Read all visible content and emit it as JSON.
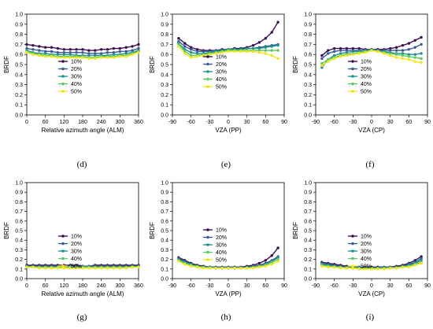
{
  "colors": {
    "10%": "#3b0f52",
    "20%": "#3b5a9a",
    "30%": "#23918c",
    "40%": "#5ec962",
    "50%": "#f2e61a"
  },
  "chart_data": [
    {
      "id": "d",
      "type": "line",
      "label": "(d)",
      "xlabel": "Relative azimuth angle (ALM)",
      "ylabel": "BRDF",
      "xlim": [
        0,
        360
      ],
      "ylim": [
        0,
        1.0
      ],
      "xticks": [
        0,
        60,
        120,
        180,
        240,
        300,
        360
      ],
      "x": [
        0,
        20,
        40,
        60,
        80,
        100,
        120,
        140,
        160,
        180,
        200,
        220,
        240,
        260,
        280,
        300,
        320,
        340,
        360
      ],
      "series": [
        {
          "name": "10%",
          "values": [
            0.7,
            0.69,
            0.68,
            0.67,
            0.67,
            0.66,
            0.65,
            0.65,
            0.65,
            0.65,
            0.64,
            0.64,
            0.65,
            0.65,
            0.66,
            0.66,
            0.67,
            0.68,
            0.7
          ]
        },
        {
          "name": "20%",
          "values": [
            0.66,
            0.65,
            0.64,
            0.63,
            0.63,
            0.62,
            0.62,
            0.62,
            0.62,
            0.62,
            0.61,
            0.61,
            0.61,
            0.62,
            0.62,
            0.63,
            0.63,
            0.64,
            0.66
          ]
        },
        {
          "name": "30%",
          "values": [
            0.64,
            0.62,
            0.61,
            0.61,
            0.6,
            0.6,
            0.6,
            0.6,
            0.59,
            0.59,
            0.59,
            0.59,
            0.59,
            0.59,
            0.6,
            0.6,
            0.61,
            0.62,
            0.64
          ]
        },
        {
          "name": "40%",
          "values": [
            0.63,
            0.61,
            0.6,
            0.59,
            0.59,
            0.58,
            0.58,
            0.58,
            0.58,
            0.58,
            0.57,
            0.57,
            0.58,
            0.58,
            0.58,
            0.59,
            0.59,
            0.61,
            0.63
          ]
        },
        {
          "name": "50%",
          "values": [
            0.62,
            0.6,
            0.59,
            0.58,
            0.58,
            0.57,
            0.57,
            0.57,
            0.57,
            0.57,
            0.56,
            0.56,
            0.57,
            0.57,
            0.57,
            0.58,
            0.58,
            0.6,
            0.62
          ]
        }
      ]
    },
    {
      "id": "e",
      "type": "line",
      "label": "(e)",
      "xlabel": "VZA (PP)",
      "ylabel": "BRDF",
      "xlim": [
        -90,
        90
      ],
      "ylim": [
        0,
        1.0
      ],
      "xticks": [
        -90,
        -60,
        -30,
        0,
        30,
        60,
        90
      ],
      "x": [
        -80,
        -70,
        -60,
        -50,
        -40,
        -30,
        -20,
        -10,
        0,
        10,
        20,
        30,
        40,
        50,
        60,
        70,
        80
      ],
      "series": [
        {
          "name": "10%",
          "values": [
            0.76,
            0.71,
            0.67,
            0.65,
            0.64,
            0.64,
            0.64,
            0.65,
            0.65,
            0.66,
            0.66,
            0.67,
            0.69,
            0.72,
            0.76,
            0.82,
            0.92
          ]
        },
        {
          "name": "20%",
          "values": [
            0.73,
            0.68,
            0.65,
            0.63,
            0.63,
            0.63,
            0.64,
            0.64,
            0.65,
            0.65,
            0.65,
            0.66,
            0.66,
            0.67,
            0.68,
            0.69,
            0.7
          ]
        },
        {
          "name": "30%",
          "values": [
            0.71,
            0.65,
            0.62,
            0.61,
            0.61,
            0.62,
            0.63,
            0.64,
            0.65,
            0.65,
            0.65,
            0.66,
            0.66,
            0.66,
            0.67,
            0.68,
            0.69
          ]
        },
        {
          "name": "40%",
          "values": [
            0.7,
            0.63,
            0.59,
            0.59,
            0.6,
            0.61,
            0.62,
            0.63,
            0.64,
            0.64,
            0.64,
            0.64,
            0.64,
            0.64,
            0.64,
            0.64,
            0.64
          ]
        },
        {
          "name": "50%",
          "values": [
            0.68,
            0.61,
            0.57,
            0.58,
            0.59,
            0.6,
            0.61,
            0.62,
            0.63,
            0.63,
            0.63,
            0.63,
            0.63,
            0.62,
            0.61,
            0.59,
            0.56
          ]
        }
      ]
    },
    {
      "id": "f",
      "type": "line",
      "label": "(f)",
      "xlabel": "VZA (CP)",
      "ylabel": "BRDF",
      "xlim": [
        -90,
        90
      ],
      "ylim": [
        0,
        1.0
      ],
      "xticks": [
        -90,
        -60,
        -30,
        0,
        30,
        60,
        90
      ],
      "x": [
        -80,
        -70,
        -60,
        -50,
        -40,
        -30,
        -20,
        -10,
        0,
        10,
        20,
        30,
        40,
        50,
        60,
        70,
        80
      ],
      "series": [
        {
          "name": "10%",
          "values": [
            0.59,
            0.64,
            0.66,
            0.66,
            0.66,
            0.66,
            0.66,
            0.65,
            0.65,
            0.65,
            0.65,
            0.66,
            0.67,
            0.69,
            0.71,
            0.74,
            0.77
          ]
        },
        {
          "name": "20%",
          "values": [
            0.56,
            0.61,
            0.63,
            0.64,
            0.64,
            0.64,
            0.64,
            0.64,
            0.65,
            0.64,
            0.64,
            0.64,
            0.64,
            0.64,
            0.65,
            0.67,
            0.7
          ]
        },
        {
          "name": "30%",
          "values": [
            0.47,
            0.55,
            0.59,
            0.61,
            0.62,
            0.63,
            0.63,
            0.64,
            0.65,
            0.64,
            0.63,
            0.62,
            0.61,
            0.61,
            0.6,
            0.6,
            0.61
          ]
        },
        {
          "name": "40%",
          "values": [
            0.51,
            0.55,
            0.57,
            0.59,
            0.6,
            0.61,
            0.62,
            0.63,
            0.64,
            0.63,
            0.62,
            0.61,
            0.6,
            0.59,
            0.58,
            0.57,
            0.56
          ]
        },
        {
          "name": "50%",
          "values": [
            0.49,
            0.53,
            0.56,
            0.58,
            0.59,
            0.6,
            0.61,
            0.62,
            0.64,
            0.63,
            0.61,
            0.59,
            0.57,
            0.56,
            0.55,
            0.53,
            0.52
          ]
        }
      ]
    },
    {
      "id": "g",
      "type": "line",
      "label": "(g)",
      "xlabel": "Relative azimuth angle (ALM)",
      "ylabel": "BRDF",
      "xlim": [
        0,
        360
      ],
      "ylim": [
        0,
        1.0
      ],
      "xticks": [
        0,
        60,
        120,
        180,
        240,
        300,
        360
      ],
      "x": [
        0,
        20,
        40,
        60,
        80,
        100,
        120,
        140,
        160,
        180,
        200,
        220,
        240,
        260,
        280,
        300,
        320,
        340,
        360
      ],
      "series": [
        {
          "name": "10%",
          "values": [
            0.14,
            0.14,
            0.14,
            0.14,
            0.14,
            0.14,
            0.14,
            0.14,
            0.14,
            0.13,
            0.13,
            0.14,
            0.14,
            0.14,
            0.14,
            0.14,
            0.14,
            0.14,
            0.14
          ]
        },
        {
          "name": "20%",
          "values": [
            0.13,
            0.13,
            0.13,
            0.13,
            0.13,
            0.13,
            0.13,
            0.13,
            0.13,
            0.13,
            0.13,
            0.13,
            0.13,
            0.13,
            0.13,
            0.13,
            0.13,
            0.13,
            0.13
          ]
        },
        {
          "name": "30%",
          "values": [
            0.13,
            0.13,
            0.12,
            0.12,
            0.12,
            0.12,
            0.12,
            0.12,
            0.12,
            0.12,
            0.12,
            0.12,
            0.12,
            0.12,
            0.12,
            0.12,
            0.12,
            0.13,
            0.13
          ]
        },
        {
          "name": "40%",
          "values": [
            0.12,
            0.12,
            0.12,
            0.12,
            0.12,
            0.12,
            0.12,
            0.12,
            0.12,
            0.12,
            0.12,
            0.12,
            0.12,
            0.12,
            0.12,
            0.12,
            0.12,
            0.12,
            0.12
          ]
        },
        {
          "name": "50%",
          "values": [
            0.12,
            0.12,
            0.11,
            0.11,
            0.11,
            0.11,
            0.11,
            0.11,
            0.11,
            0.11,
            0.11,
            0.11,
            0.11,
            0.11,
            0.11,
            0.11,
            0.11,
            0.12,
            0.12
          ]
        }
      ]
    },
    {
      "id": "h",
      "type": "line",
      "label": "(h)",
      "xlabel": "VZA (PP)",
      "ylabel": "BRDF",
      "xlim": [
        -90,
        90
      ],
      "ylim": [
        0,
        1.0
      ],
      "xticks": [
        -90,
        -60,
        -30,
        0,
        30,
        60,
        90
      ],
      "x": [
        -80,
        -70,
        -60,
        -50,
        -40,
        -30,
        -20,
        -10,
        0,
        10,
        20,
        30,
        40,
        50,
        60,
        70,
        80
      ],
      "series": [
        {
          "name": "10%",
          "values": [
            0.22,
            0.19,
            0.16,
            0.14,
            0.13,
            0.12,
            0.12,
            0.12,
            0.12,
            0.12,
            0.12,
            0.13,
            0.14,
            0.16,
            0.19,
            0.24,
            0.32
          ]
        },
        {
          "name": "20%",
          "values": [
            0.21,
            0.18,
            0.15,
            0.13,
            0.12,
            0.12,
            0.12,
            0.12,
            0.12,
            0.12,
            0.12,
            0.12,
            0.13,
            0.14,
            0.16,
            0.19,
            0.23
          ]
        },
        {
          "name": "30%",
          "values": [
            0.2,
            0.17,
            0.15,
            0.13,
            0.12,
            0.12,
            0.11,
            0.11,
            0.11,
            0.11,
            0.11,
            0.12,
            0.12,
            0.13,
            0.15,
            0.18,
            0.22
          ]
        },
        {
          "name": "40%",
          "values": [
            0.19,
            0.16,
            0.14,
            0.13,
            0.12,
            0.11,
            0.11,
            0.11,
            0.11,
            0.11,
            0.11,
            0.11,
            0.12,
            0.13,
            0.14,
            0.17,
            0.2
          ]
        },
        {
          "name": "50%",
          "values": [
            0.18,
            0.15,
            0.13,
            0.12,
            0.11,
            0.11,
            0.11,
            0.11,
            0.11,
            0.11,
            0.11,
            0.11,
            0.11,
            0.12,
            0.13,
            0.15,
            0.18
          ]
        }
      ]
    },
    {
      "id": "i",
      "type": "line",
      "label": "(i)",
      "xlabel": "VZA (CP)",
      "ylabel": "BRDF",
      "xlim": [
        -90,
        90
      ],
      "ylim": [
        0,
        1.0
      ],
      "xticks": [
        -90,
        -60,
        -30,
        0,
        30,
        60,
        90
      ],
      "x": [
        -80,
        -70,
        -60,
        -50,
        -40,
        -30,
        -20,
        -10,
        0,
        10,
        20,
        30,
        40,
        50,
        60,
        70,
        80
      ],
      "series": [
        {
          "name": "10%",
          "values": [
            0.17,
            0.16,
            0.15,
            0.14,
            0.13,
            0.12,
            0.12,
            0.12,
            0.12,
            0.12,
            0.12,
            0.12,
            0.13,
            0.14,
            0.16,
            0.19,
            0.23
          ]
        },
        {
          "name": "20%",
          "values": [
            0.16,
            0.15,
            0.14,
            0.13,
            0.12,
            0.12,
            0.12,
            0.11,
            0.11,
            0.11,
            0.12,
            0.12,
            0.12,
            0.13,
            0.15,
            0.17,
            0.21
          ]
        },
        {
          "name": "30%",
          "values": [
            0.15,
            0.14,
            0.13,
            0.12,
            0.12,
            0.11,
            0.11,
            0.11,
            0.11,
            0.11,
            0.11,
            0.11,
            0.12,
            0.13,
            0.14,
            0.16,
            0.19
          ]
        },
        {
          "name": "40%",
          "values": [
            0.14,
            0.13,
            0.12,
            0.12,
            0.11,
            0.11,
            0.11,
            0.11,
            0.11,
            0.11,
            0.11,
            0.11,
            0.11,
            0.12,
            0.13,
            0.15,
            0.17
          ]
        },
        {
          "name": "50%",
          "values": [
            0.13,
            0.12,
            0.12,
            0.11,
            0.11,
            0.11,
            0.1,
            0.1,
            0.1,
            0.1,
            0.1,
            0.11,
            0.11,
            0.12,
            0.12,
            0.14,
            0.16
          ]
        }
      ]
    }
  ]
}
